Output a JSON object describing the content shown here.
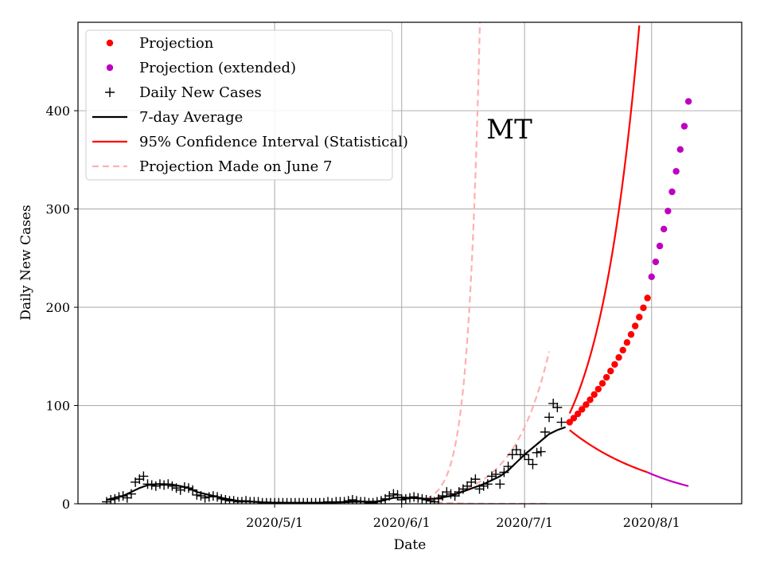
{
  "chart_data": {
    "type": "line",
    "title": "",
    "annotation": "MT",
    "xlabel": "Date",
    "ylabel": "Daily New Cases",
    "x_ticks": [
      {
        "label": "2020/5/1",
        "day": 41
      },
      {
        "label": "2020/6/1",
        "day": 72
      },
      {
        "label": "2020/7/1",
        "day": 102
      },
      {
        "label": "2020/8/1",
        "day": 133
      }
    ],
    "y_ticks": [
      0,
      100,
      200,
      300,
      400
    ],
    "xlim": [
      -7,
      155
    ],
    "ylim": [
      0,
      490
    ],
    "x_unit": "days since 2020-03-21",
    "grid": true,
    "legend_position": "top-left",
    "colors": {
      "projection": "#ff0000",
      "projection_extended": "#bf00bf",
      "daily": "#000000",
      "average": "#000000",
      "ci": "#ff0000",
      "ci_extended": "#bf00bf",
      "june7": "#ffb0b0"
    },
    "legend": [
      {
        "key": "projection",
        "label": "Projection",
        "marker": "dot"
      },
      {
        "key": "projection_extended",
        "label": "Projection (extended)",
        "marker": "dot"
      },
      {
        "key": "daily",
        "label": "Daily New Cases",
        "marker": "plus"
      },
      {
        "key": "average",
        "label": "7-day Average",
        "marker": "line"
      },
      {
        "key": "ci",
        "label": "95% Confidence Interval (Statistical)",
        "marker": "line"
      },
      {
        "key": "june7",
        "label": "Projection Made on June 7",
        "marker": "dash"
      }
    ],
    "series": {
      "daily_new_cases": [
        [
          0,
          2
        ],
        [
          1,
          4
        ],
        [
          2,
          5
        ],
        [
          3,
          7
        ],
        [
          4,
          8
        ],
        [
          5,
          6
        ],
        [
          6,
          10
        ],
        [
          7,
          22
        ],
        [
          8,
          25
        ],
        [
          9,
          28
        ],
        [
          10,
          20
        ],
        [
          11,
          19
        ],
        [
          12,
          18
        ],
        [
          13,
          20
        ],
        [
          14,
          19
        ],
        [
          15,
          20
        ],
        [
          16,
          18
        ],
        [
          17,
          16
        ],
        [
          18,
          14
        ],
        [
          19,
          17
        ],
        [
          20,
          16
        ],
        [
          21,
          14
        ],
        [
          22,
          9
        ],
        [
          23,
          8
        ],
        [
          24,
          6
        ],
        [
          25,
          7
        ],
        [
          26,
          8
        ],
        [
          27,
          7
        ],
        [
          28,
          5
        ],
        [
          29,
          4
        ],
        [
          30,
          3
        ],
        [
          31,
          3
        ],
        [
          32,
          2
        ],
        [
          33,
          2
        ],
        [
          34,
          3
        ],
        [
          35,
          2
        ],
        [
          36,
          2
        ],
        [
          37,
          2
        ],
        [
          38,
          1
        ],
        [
          39,
          1
        ],
        [
          40,
          1
        ],
        [
          41,
          1
        ],
        [
          42,
          1
        ],
        [
          43,
          1
        ],
        [
          44,
          1
        ],
        [
          45,
          1
        ],
        [
          46,
          1
        ],
        [
          47,
          1
        ],
        [
          48,
          1
        ],
        [
          49,
          1
        ],
        [
          50,
          1
        ],
        [
          51,
          1
        ],
        [
          52,
          1
        ],
        [
          53,
          1
        ],
        [
          54,
          2
        ],
        [
          55,
          1
        ],
        [
          56,
          2
        ],
        [
          57,
          2
        ],
        [
          58,
          2
        ],
        [
          59,
          3
        ],
        [
          60,
          4
        ],
        [
          61,
          3
        ],
        [
          62,
          2
        ],
        [
          63,
          2
        ],
        [
          64,
          1
        ],
        [
          65,
          1
        ],
        [
          66,
          2
        ],
        [
          67,
          3
        ],
        [
          68,
          5
        ],
        [
          69,
          8
        ],
        [
          70,
          10
        ],
        [
          71,
          9
        ],
        [
          72,
          4
        ],
        [
          73,
          5
        ],
        [
          74,
          6
        ],
        [
          75,
          7
        ],
        [
          76,
          6
        ],
        [
          77,
          5
        ],
        [
          78,
          4
        ],
        [
          79,
          3
        ],
        [
          80,
          2
        ],
        [
          81,
          5
        ],
        [
          82,
          8
        ],
        [
          83,
          12
        ],
        [
          84,
          10
        ],
        [
          85,
          8
        ],
        [
          86,
          12
        ],
        [
          87,
          15
        ],
        [
          88,
          18
        ],
        [
          89,
          22
        ],
        [
          90,
          25
        ],
        [
          91,
          15
        ],
        [
          92,
          18
        ],
        [
          93,
          20
        ],
        [
          94,
          28
        ],
        [
          95,
          30
        ],
        [
          96,
          20
        ],
        [
          97,
          32
        ],
        [
          98,
          38
        ],
        [
          99,
          50
        ],
        [
          100,
          55
        ],
        [
          101,
          50
        ],
        [
          102,
          50
        ],
        [
          103,
          45
        ],
        [
          104,
          40
        ],
        [
          105,
          52
        ],
        [
          106,
          53
        ],
        [
          107,
          73
        ],
        [
          108,
          88
        ],
        [
          109,
          102
        ],
        [
          110,
          98
        ],
        [
          111,
          83
        ]
      ],
      "seven_day_average": [
        [
          0,
          4
        ],
        [
          2,
          6
        ],
        [
          4,
          8
        ],
        [
          6,
          12
        ],
        [
          8,
          16
        ],
        [
          10,
          19
        ],
        [
          12,
          20
        ],
        [
          14,
          20
        ],
        [
          16,
          19.5
        ],
        [
          18,
          18
        ],
        [
          20,
          16
        ],
        [
          22,
          12
        ],
        [
          24,
          10
        ],
        [
          26,
          8
        ],
        [
          28,
          6
        ],
        [
          30,
          4.5
        ],
        [
          32,
          3
        ],
        [
          34,
          2.5
        ],
        [
          36,
          2
        ],
        [
          38,
          1.5
        ],
        [
          40,
          1.2
        ],
        [
          45,
          1
        ],
        [
          50,
          1
        ],
        [
          55,
          1.2
        ],
        [
          58,
          1.6
        ],
        [
          60,
          2
        ],
        [
          62,
          2.2
        ],
        [
          64,
          2
        ],
        [
          66,
          2.2
        ],
        [
          68,
          4
        ],
        [
          70,
          6
        ],
        [
          72,
          6.5
        ],
        [
          74,
          6
        ],
        [
          76,
          5.5
        ],
        [
          78,
          5
        ],
        [
          80,
          5
        ],
        [
          82,
          6.5
        ],
        [
          84,
          8
        ],
        [
          86,
          11
        ],
        [
          88,
          14
        ],
        [
          90,
          17
        ],
        [
          92,
          20
        ],
        [
          94,
          24
        ],
        [
          96,
          28
        ],
        [
          98,
          34
        ],
        [
          100,
          42
        ],
        [
          102,
          50
        ],
        [
          104,
          57
        ],
        [
          106,
          64
        ],
        [
          108,
          71
        ],
        [
          110,
          75
        ],
        [
          112,
          78
        ]
      ],
      "projection": {
        "start_day": 113,
        "end_day": 132,
        "start_value": 83,
        "growth_rate": 0.0487
      },
      "projection_extended": {
        "start_day": 133,
        "end_day": 142,
        "start_value": 231,
        "growth_rate": 0.0636
      },
      "ci_upper": {
        "start_day": 113,
        "end_day": 130,
        "start_value": 92,
        "growth_rate": 0.098
      },
      "ci_lower": {
        "start_day": 113,
        "end_day": 132,
        "start_value": 75,
        "end_value": 32
      },
      "ci_lower_extended": {
        "start_day": 132,
        "end_day": 142,
        "start_value": 32,
        "end_value": 18
      },
      "june7_upper": {
        "start_day": 78,
        "end_day": 96,
        "start_value": 5,
        "growth_rate": 0.35
      },
      "june7_mid": {
        "start_day": 78,
        "end_day": 108,
        "start_value": 5,
        "end_value": 155
      },
      "june7_lower": {
        "start_day": 78,
        "end_day": 108,
        "start_value": 3,
        "end_value": 0
      }
    }
  }
}
